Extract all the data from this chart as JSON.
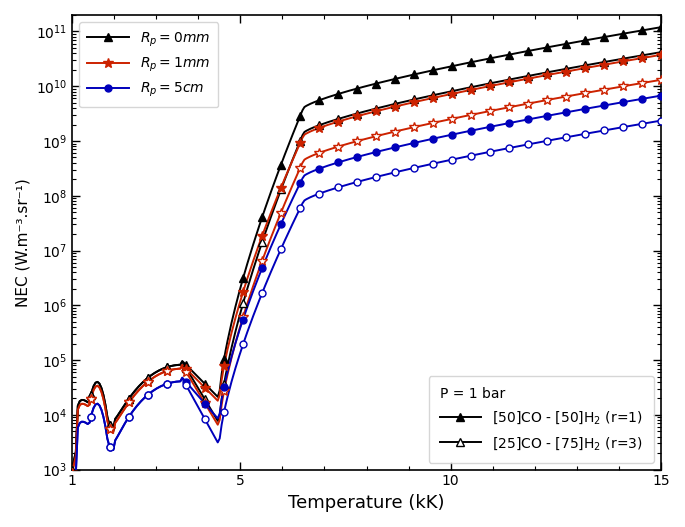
{
  "xlabel": "Temperature (kK)",
  "ylabel": "NEC (W.m⁻³.sr⁻¹)",
  "xlim": [
    1,
    15
  ],
  "ylim": [
    1000.0,
    200000000000.0
  ],
  "colors": {
    "black": "#000000",
    "red": "#cc2200",
    "blue": "#0000bb"
  },
  "legend2_line1": "[50]CO - [50]H$_2$ (r=1)",
  "legend2_line2": "[25]CO - [75]H$_2$ (r=3)",
  "legend2_pressure": "P = 1 bar",
  "T_start": 1.0,
  "T_end": 15.0,
  "n_pts": 300,
  "n_markers": 32
}
